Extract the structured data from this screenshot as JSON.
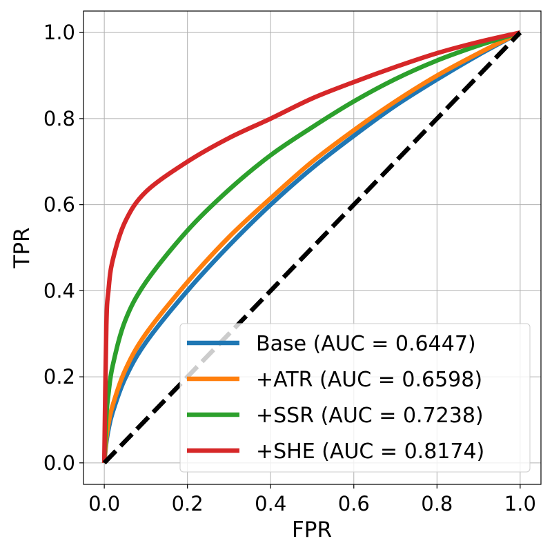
{
  "chart_data": {
    "type": "line",
    "title": "",
    "xlabel": "FPR",
    "ylabel": "TPR",
    "xlim": [
      -0.05,
      1.05
    ],
    "ylim": [
      -0.05,
      1.05
    ],
    "x_ticks": [
      "0.0",
      "0.2",
      "0.4",
      "0.6",
      "0.8",
      "1.0"
    ],
    "y_ticks": [
      "0.0",
      "0.2",
      "0.4",
      "0.6",
      "0.8",
      "1.0"
    ],
    "grid": true,
    "legend_position": "lower-right",
    "x": [
      0.0,
      0.005,
      0.01,
      0.02,
      0.05,
      0.1,
      0.2,
      0.3,
      0.4,
      0.5,
      0.6,
      0.7,
      0.8,
      0.9,
      1.0
    ],
    "series": [
      {
        "name": "Base (AUC = 0.6447)",
        "color": "#1f77b4",
        "values": [
          0.0,
          0.048,
          0.077,
          0.117,
          0.196,
          0.28,
          0.4,
          0.505,
          0.6,
          0.685,
          0.76,
          0.83,
          0.891,
          0.948,
          1.0
        ]
      },
      {
        "name": "+ATR (AUC = 0.6598)",
        "color": "#ff7f0e",
        "values": [
          0.0,
          0.058,
          0.09,
          0.133,
          0.215,
          0.3,
          0.42,
          0.525,
          0.615,
          0.7,
          0.773,
          0.84,
          0.9,
          0.952,
          1.0
        ]
      },
      {
        "name": "+SSR (AUC = 0.7238)",
        "color": "#2ca02c",
        "values": [
          0.0,
          0.11,
          0.16,
          0.225,
          0.33,
          0.42,
          0.54,
          0.635,
          0.715,
          0.78,
          0.84,
          0.892,
          0.935,
          0.97,
          1.0
        ]
      },
      {
        "name": "+SHE (AUC = 0.8174)",
        "color": "#d62728",
        "values": [
          0.0,
          0.32,
          0.4,
          0.47,
          0.56,
          0.63,
          0.7,
          0.755,
          0.8,
          0.847,
          0.885,
          0.92,
          0.952,
          0.978,
          1.0
        ]
      }
    ],
    "reference_line": {
      "x": [
        0.0,
        1.0
      ],
      "y": [
        0.0,
        1.0
      ],
      "color": "#000000",
      "style": "dashed"
    }
  }
}
